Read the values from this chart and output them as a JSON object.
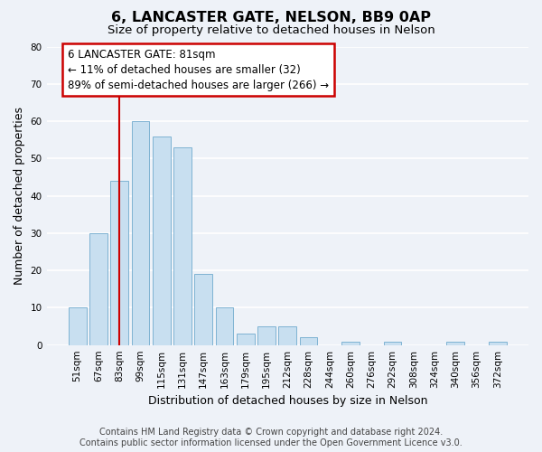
{
  "title": "6, LANCASTER GATE, NELSON, BB9 0AP",
  "subtitle": "Size of property relative to detached houses in Nelson",
  "xlabel": "Distribution of detached houses by size in Nelson",
  "ylabel": "Number of detached properties",
  "bar_labels": [
    "51sqm",
    "67sqm",
    "83sqm",
    "99sqm",
    "115sqm",
    "131sqm",
    "147sqm",
    "163sqm",
    "179sqm",
    "195sqm",
    "212sqm",
    "228sqm",
    "244sqm",
    "260sqm",
    "276sqm",
    "292sqm",
    "308sqm",
    "324sqm",
    "340sqm",
    "356sqm",
    "372sqm"
  ],
  "bar_values": [
    10,
    30,
    44,
    60,
    56,
    53,
    19,
    10,
    3,
    5,
    5,
    2,
    0,
    1,
    0,
    1,
    0,
    0,
    1,
    0,
    1
  ],
  "bar_color": "#c8dff0",
  "bar_edge_color": "#7fb3d3",
  "highlight_bar_index": 2,
  "highlight_line_color": "#cc0000",
  "ylim": [
    0,
    80
  ],
  "yticks": [
    0,
    10,
    20,
    30,
    40,
    50,
    60,
    70,
    80
  ],
  "annotation_box_text": "6 LANCASTER GATE: 81sqm\n← 11% of detached houses are smaller (32)\n89% of semi-detached houses are larger (266) →",
  "footer_line1": "Contains HM Land Registry data © Crown copyright and database right 2024.",
  "footer_line2": "Contains public sector information licensed under the Open Government Licence v3.0.",
  "bg_color": "#eef2f8",
  "plot_bg_color": "#eef2f8",
  "title_fontsize": 11.5,
  "subtitle_fontsize": 9.5,
  "axis_label_fontsize": 9,
  "tick_fontsize": 7.5,
  "annotation_fontsize": 8.5,
  "footer_fontsize": 7
}
